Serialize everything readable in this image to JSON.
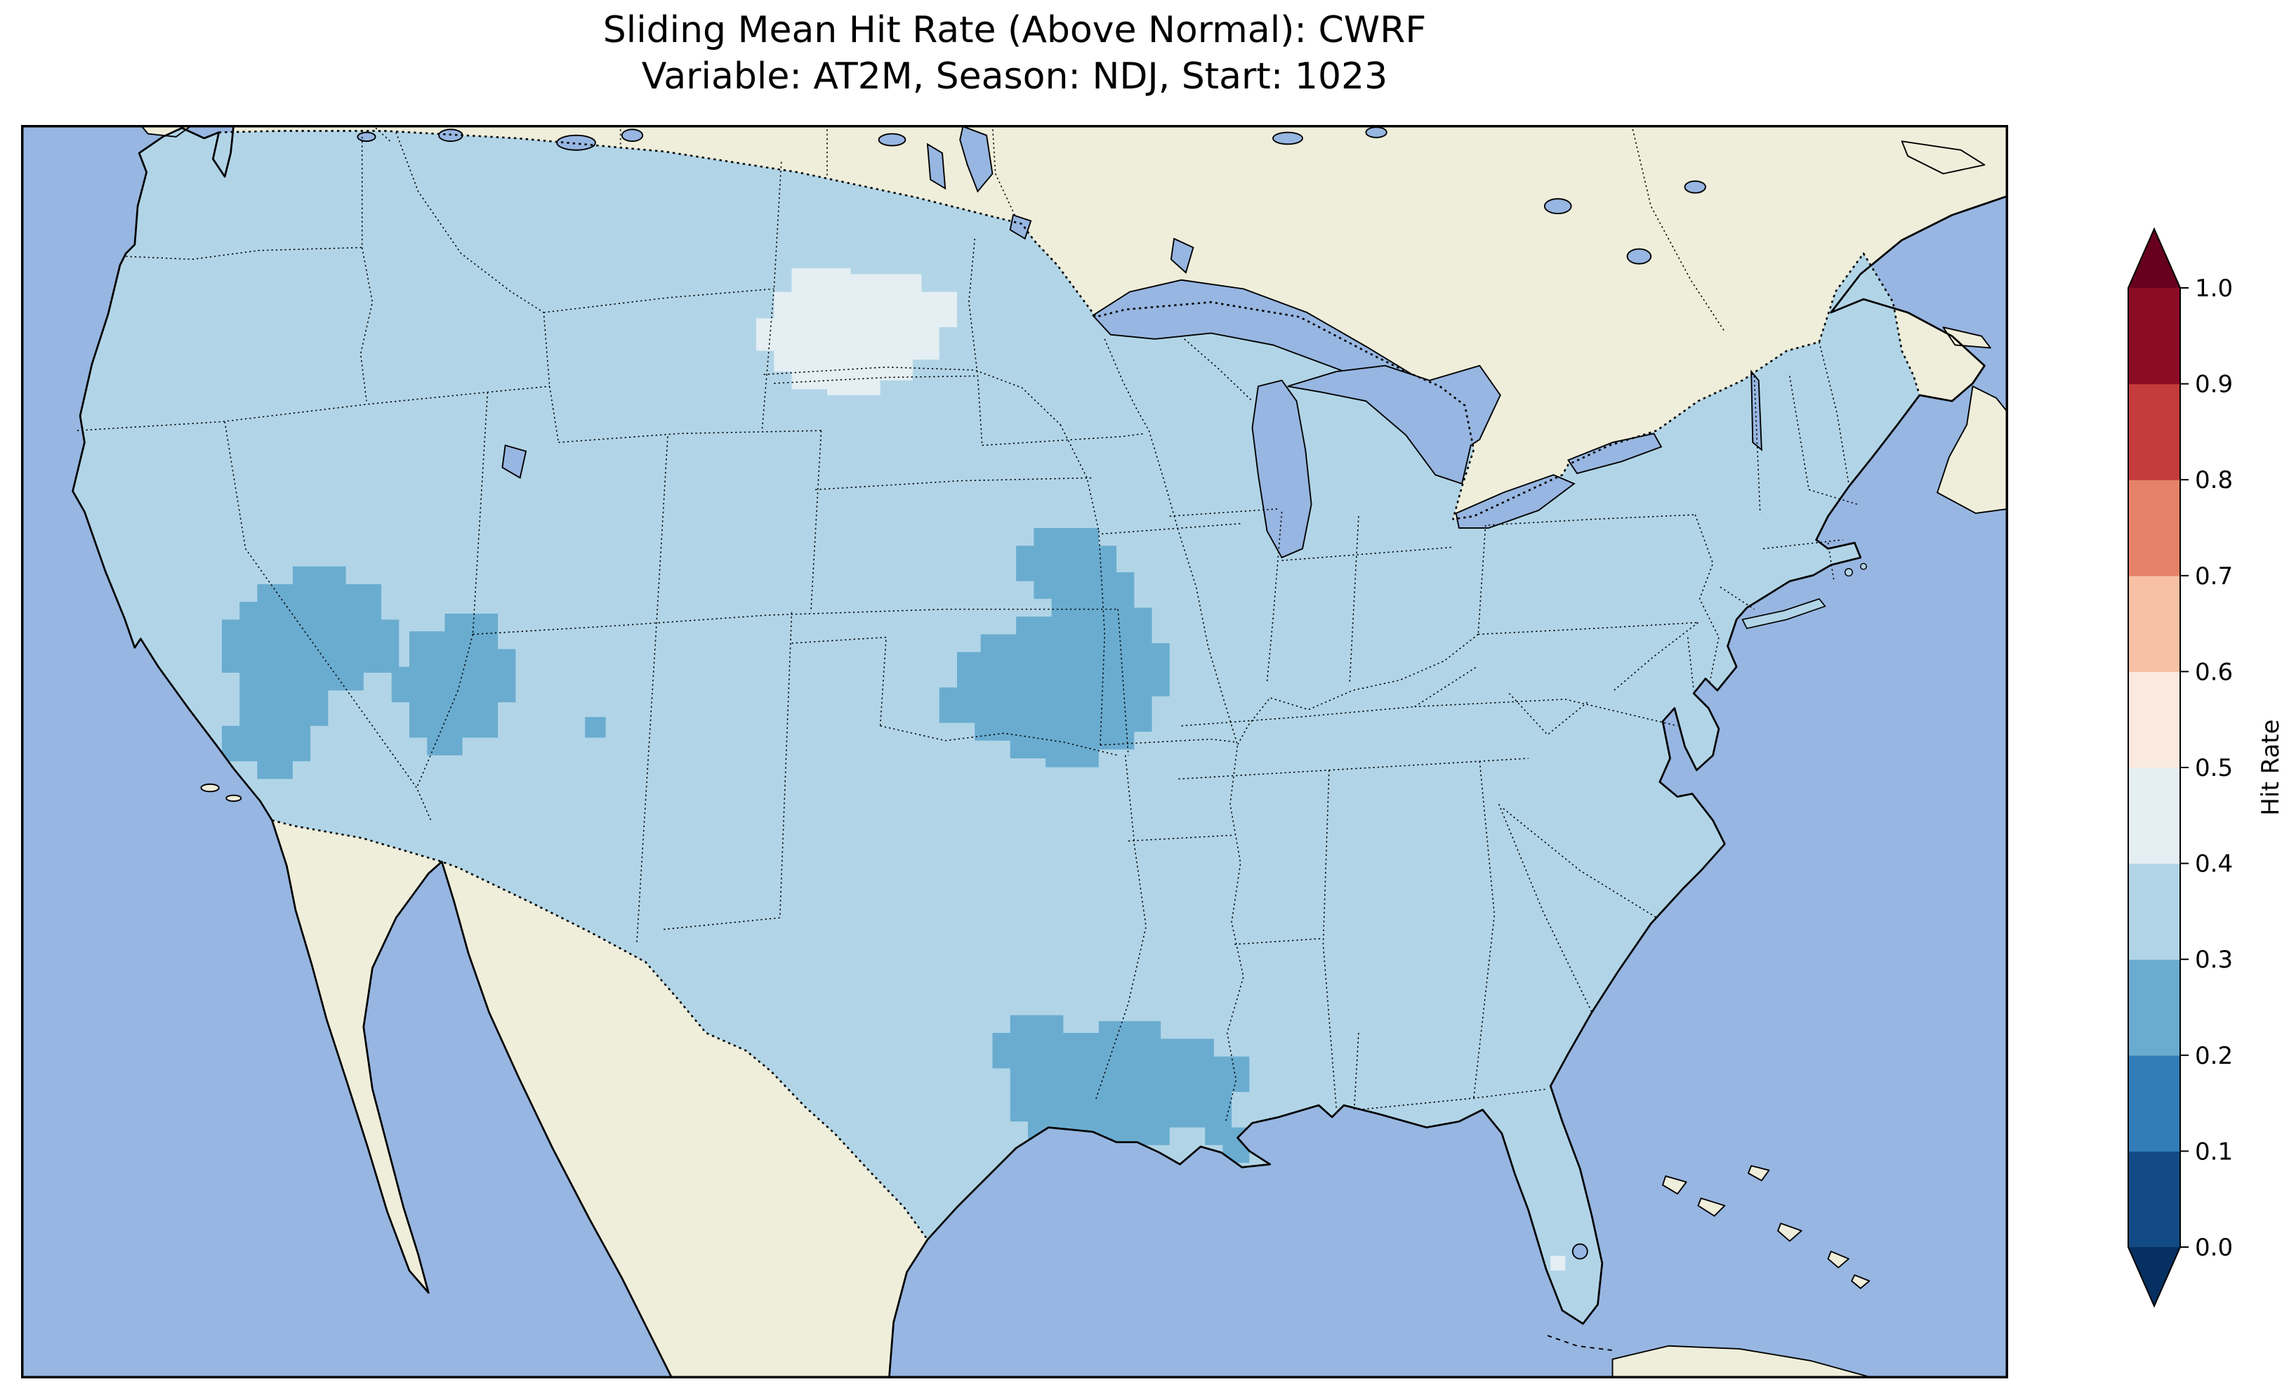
{
  "figure": {
    "title_line1": "Sliding Mean Hit Rate (Above Normal): CWRF",
    "title_line2": "Variable: AT2M, Season: NDJ, Start: 1023"
  },
  "colorbar": {
    "label": "Hit Rate",
    "tick_labels": [
      "0.0",
      "0.1",
      "0.2",
      "0.3",
      "0.4",
      "0.5",
      "0.6",
      "0.7",
      "0.8",
      "0.9",
      "1.0"
    ],
    "segment_colors_bottom_to_top": [
      "#134b86",
      "#327cb7",
      "#6aacd0",
      "#b1d5e7",
      "#e4eef3",
      "#fae9df",
      "#f8c0a4",
      "#e58267",
      "#c43c3c",
      "#8c0c25"
    ],
    "under_arrow_color": "#053061",
    "over_arrow_color": "#67001f"
  },
  "map_colors": {
    "ocean": "#97b6e1",
    "land": "#efeedb",
    "lake": "#97b6e1",
    "hit_rate_30_40": "#b1d5e7",
    "hit_rate_20_30": "#6aacd0",
    "hit_rate_40_50": "#e4eef3"
  },
  "chart_data": {
    "type": "heatmap",
    "subtype": "geographic-gridded-map (pcolormesh over CONUS)",
    "title": "Sliding Mean Hit Rate (Above Normal): CWRF",
    "subtitle": "Variable: AT2M, Season: NDJ, Start: 1023",
    "model": "CWRF",
    "variable": "AT2M",
    "season": "NDJ",
    "start": "1023",
    "region": "Continental United States",
    "colorbar": {
      "label": "Hit Rate",
      "min": 0.0,
      "max": 1.0,
      "tick_step": 0.1,
      "colormap": "RdBu_r (discrete, 10 bins)",
      "extend": "both"
    },
    "values_by_region": [
      {
        "region": "Most of the contiguous US",
        "hit_rate_bin": "0.3–0.4"
      },
      {
        "region": "Central North Dakota",
        "hit_rate_bin": "0.4–0.5"
      },
      {
        "region": "Western Arizona / southern Nevada",
        "hit_rate_bin": "0.2–0.3"
      },
      {
        "region": "Four Corners (NE Arizona, SW Colorado, NW New Mexico)",
        "hit_rate_bin": "0.2–0.3"
      },
      {
        "region": "Central Plains (E Nebraska, Kansas, W Missouri, SW Iowa)",
        "hit_rate_bin": "0.2–0.3"
      },
      {
        "region": "SE Texas and Louisiana Gulf Coast",
        "hit_rate_bin": "0.2–0.3"
      },
      {
        "region": "Two coastal grid cells near SW Florida",
        "hit_rate_bin": "0.4–0.5"
      }
    ]
  }
}
